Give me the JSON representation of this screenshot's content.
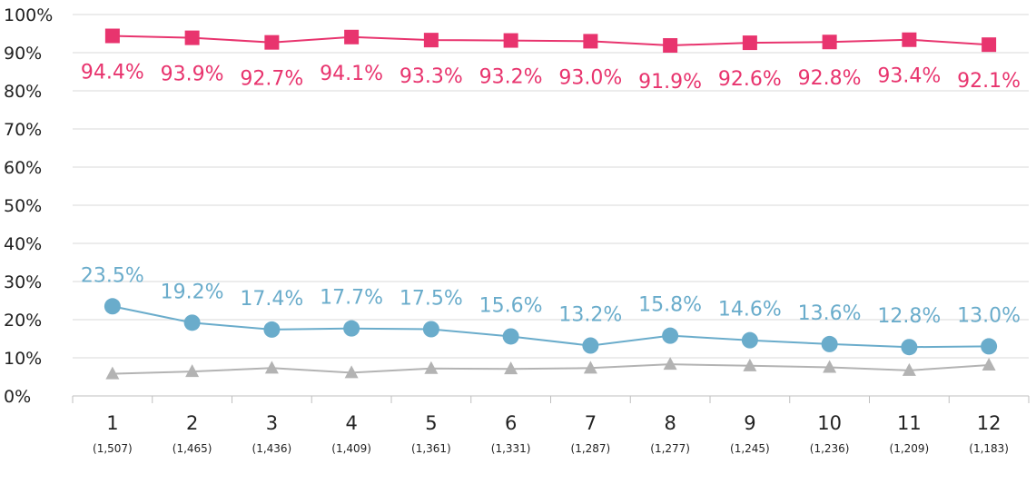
{
  "chart_data": {
    "type": "line",
    "categories": [
      "1",
      "2",
      "3",
      "4",
      "5",
      "6",
      "7",
      "8",
      "9",
      "10",
      "11",
      "12"
    ],
    "category_sublabels": [
      "(1,507)",
      "(1,465)",
      "(1,436)",
      "(1,409)",
      "(1,361)",
      "(1,331)",
      "(1,287)",
      "(1,277)",
      "(1,245)",
      "(1,236)",
      "(1,209)",
      "(1,183)"
    ],
    "ylim": [
      0,
      100
    ],
    "yticks": [
      0,
      10,
      20,
      30,
      40,
      50,
      60,
      70,
      80,
      90,
      100
    ],
    "ytick_suffix": "%",
    "grid": true,
    "series": [
      {
        "marker": "square",
        "color": "#e8346e",
        "values": [
          94.4,
          93.9,
          92.7,
          94.1,
          93.3,
          93.2,
          93.0,
          91.9,
          92.6,
          92.8,
          93.4,
          92.1
        ],
        "data_labels": [
          "94.4%",
          "93.9%",
          "92.7%",
          "94.1%",
          "93.3%",
          "93.2%",
          "93.0%",
          "91.9%",
          "92.6%",
          "92.8%",
          "93.4%",
          "92.1%"
        ]
      },
      {
        "marker": "circle",
        "color": "#6aaccb",
        "values": [
          23.5,
          19.2,
          17.4,
          17.7,
          17.5,
          15.6,
          13.2,
          15.8,
          14.6,
          13.6,
          12.8,
          13.0
        ],
        "data_labels": [
          "23.5%",
          "19.2%",
          "17.4%",
          "17.7%",
          "17.5%",
          "15.6%",
          "13.2%",
          "15.8%",
          "14.6%",
          "13.6%",
          "12.8%",
          "13.0%"
        ]
      },
      {
        "marker": "triangle",
        "color": "#b3b3b3",
        "values": [
          5.8,
          6.4,
          7.3,
          6.1,
          7.2,
          7.1,
          7.3,
          8.3,
          7.9,
          7.5,
          6.7,
          8.1
        ],
        "data_labels": []
      }
    ]
  }
}
